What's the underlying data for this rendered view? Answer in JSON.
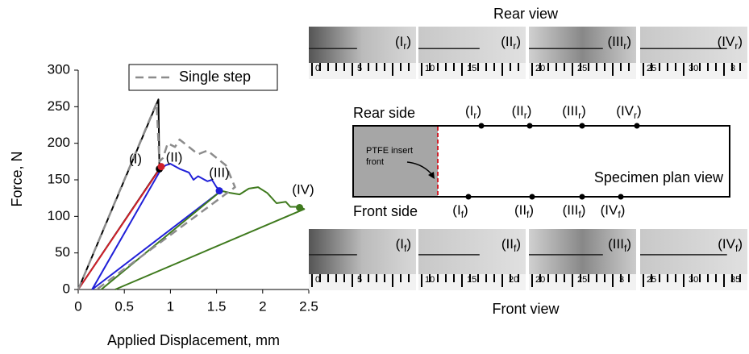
{
  "chart_data": {
    "type": "line",
    "xlabel": "Applied Displacement, mm",
    "ylabel": "Force, N",
    "xlim": [
      0,
      2.5
    ],
    "xticks": [
      0,
      0.5,
      1,
      1.5,
      2,
      2.5
    ],
    "ylim": [
      0,
      300
    ],
    "yticks": [
      0,
      50,
      100,
      150,
      200,
      250,
      300
    ],
    "legend": "top",
    "series": [
      {
        "color": "#000000",
        "x": [
          0,
          0.87,
          0.88,
          0
        ],
        "values": [
          0,
          260,
          165,
          0
        ]
      },
      {
        "color": "#d0202a",
        "x": [
          0,
          0.9
        ],
        "values": [
          0,
          168
        ]
      },
      {
        "color": "#2020d8",
        "x": [
          0.15,
          0.9,
          0.95,
          1.0,
          1.1,
          1.2,
          1.25,
          1.3,
          1.4,
          1.45,
          1.5,
          1.55,
          0.15
        ],
        "values": [
          0,
          165,
          170,
          172,
          165,
          160,
          150,
          155,
          148,
          150,
          140,
          135,
          0
        ]
      },
      {
        "color": "#3f7a1e",
        "x": [
          0.25,
          1.55,
          1.65,
          1.75,
          1.85,
          1.95,
          2.05,
          2.15,
          2.25,
          2.3,
          2.4,
          2.45,
          0.4
        ],
        "values": [
          0,
          135,
          132,
          130,
          138,
          140,
          132,
          118,
          120,
          113,
          113,
          110,
          0
        ]
      },
      {
        "name": "Single step",
        "color": "#8c8c8c",
        "dashed": true,
        "x": [
          0,
          0.85,
          0.88,
          0.92,
          0.97,
          1.05,
          1.1,
          1.2,
          1.3,
          1.4,
          1.5,
          1.6,
          1.65,
          1.7,
          0.2
        ],
        "values": [
          0,
          255,
          175,
          180,
          200,
          195,
          205,
          195,
          185,
          190,
          180,
          170,
          155,
          140,
          0
        ]
      }
    ],
    "markers": {
      "x": [
        0.88,
        0.9,
        1.53,
        2.4
      ],
      "values": [
        165,
        168,
        135,
        112
      ],
      "colors": [
        "#000000",
        "#d0202a",
        "#2020d8",
        "#3f7a1e"
      ]
    },
    "annotations": [
      "(I)",
      "(II)",
      "(III)",
      "(IV)"
    ]
  },
  "rear_view": {
    "title": "Rear view",
    "panels": [
      {
        "label": {
          "pre": "(I",
          "sub": "r",
          "post": ")"
        },
        "ruler": [
          "0",
          "5"
        ]
      },
      {
        "label": {
          "pre": "(II",
          "sub": "r",
          "post": ")"
        },
        "ruler": [
          "10",
          "15"
        ]
      },
      {
        "label": {
          "pre": "(III",
          "sub": "r",
          "post": ")"
        },
        "ruler": [
          "20",
          "25"
        ]
      },
      {
        "label": {
          "pre": "(IV",
          "sub": "r",
          "post": ")"
        },
        "ruler": [
          "25",
          "30",
          "3"
        ]
      }
    ]
  },
  "front_view": {
    "title": "Front view",
    "panels": [
      {
        "label": {
          "pre": "(I",
          "sub": "f",
          "post": ")"
        },
        "ruler": [
          "0",
          "5"
        ]
      },
      {
        "label": {
          "pre": "(II",
          "sub": "f",
          "post": ")"
        },
        "ruler": [
          "10",
          "15",
          "20"
        ]
      },
      {
        "label": {
          "pre": "(III",
          "sub": "f",
          "post": ")"
        },
        "ruler": [
          "20",
          "25",
          "3"
        ]
      },
      {
        "label": {
          "pre": "(IV",
          "sub": "f",
          "post": ")"
        },
        "ruler": [
          "25",
          "30",
          "35"
        ]
      }
    ]
  },
  "plan_view": {
    "rear_side": "Rear side",
    "front_side": "Front side",
    "insert": [
      "PTFE insert",
      "front"
    ],
    "title": "Specimen plan view",
    "rear_labels": [
      {
        "pre": "(I",
        "sub": "r",
        "post": ")"
      },
      {
        "pre": "(II",
        "sub": "r",
        "post": ")"
      },
      {
        "pre": "(III",
        "sub": "r",
        "post": ")"
      },
      {
        "pre": "(IV",
        "sub": "r",
        "post": ")"
      }
    ],
    "front_labels": [
      {
        "pre": "(I",
        "sub": "f",
        "post": ")"
      },
      {
        "pre": "(II",
        "sub": "f",
        "post": ")"
      },
      {
        "pre": "(III",
        "sub": "f",
        "post": ")"
      },
      {
        "pre": "(IV",
        "sub": "f",
        "post": ")"
      }
    ]
  }
}
